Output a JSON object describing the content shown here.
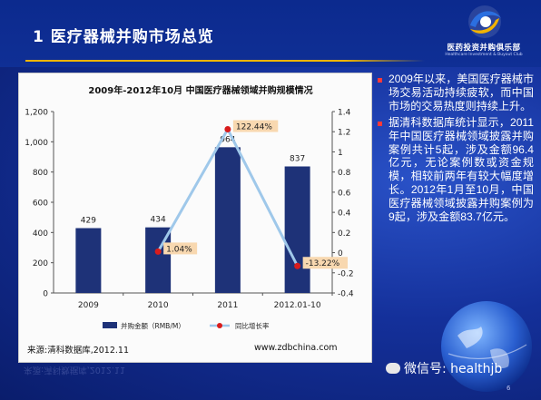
{
  "slide": {
    "title": "1 医疗器械并购市场总览",
    "logo_text": "医药投资并购俱乐部",
    "logo_subtext": "Healthcare Investment & Buyout Club",
    "page_number": "6",
    "wechat_label": "微信号: healthjb"
  },
  "bullets": [
    "2009年以来，美国医疗器械市场交易活动持续疲软，而中国市场的交易热度则持续上升。",
    "据清科数据库统计显示，2011年中国医疗器械领域披露并购案例共计5起，涉及金额96.4亿元，无论案例数或资金规模，相较前两年有较大幅度增长。2012年1月至10月，中国医疗器械领域披露并购案例为9起，涉及金额83.7亿元。"
  ],
  "source": {
    "left": "来源:清科数据库,2012.11",
    "right": "www.zdbchina.com"
  },
  "colors": {
    "bar": "#1e3278",
    "line": "#9fc8ea",
    "marker": "#d81c1c",
    "label_bg": "#f8d8b0",
    "accent": "#f0b400"
  },
  "chart_data": {
    "type": "bar",
    "title": "2009年-2012年10月 中国医疗器械领域并购规模情况",
    "categories": [
      "2009",
      "2010",
      "2011",
      "2012.01-10"
    ],
    "series": [
      {
        "name": "并购金额（RMB/M）",
        "type": "bar",
        "axis": "left",
        "values": [
          429,
          434,
          964,
          837
        ],
        "labels": [
          "429",
          "434",
          "964",
          "837"
        ]
      },
      {
        "name": "同比增长率",
        "type": "line",
        "axis": "right",
        "values": [
          null,
          0.0104,
          1.2244,
          -0.1322
        ],
        "labels": [
          "",
          "1.04%",
          "122.44%",
          "-13.22%"
        ]
      }
    ],
    "y_left": {
      "min": 0,
      "max": 1200,
      "ticks": [
        0,
        200,
        400,
        600,
        800,
        1000,
        1200
      ],
      "tick_labels": [
        "0",
        "200",
        "400",
        "600",
        "800",
        "1,000",
        "1,200"
      ]
    },
    "y_right": {
      "min": -0.4,
      "max": 1.4,
      "ticks": [
        -0.4,
        -0.2,
        0,
        0.2,
        0.4,
        0.6,
        0.8,
        1,
        1.2,
        1.4
      ],
      "tick_labels": [
        "-0.4",
        "-0.2",
        "0",
        "0.2",
        "0.4",
        "0.6",
        "0.8",
        "1",
        "1.2",
        "1.4"
      ]
    },
    "legend_position": "bottom",
    "grid": false
  }
}
